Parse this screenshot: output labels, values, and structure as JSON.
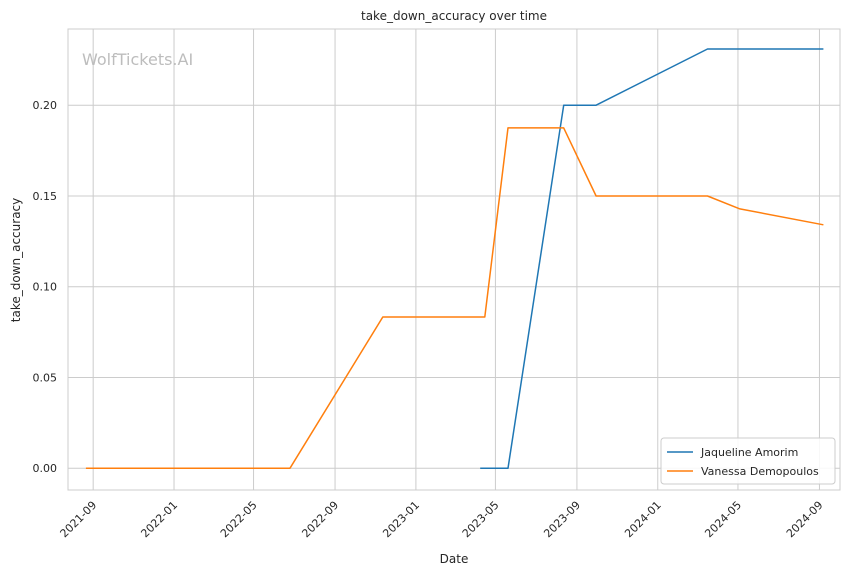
{
  "chart_data": {
    "type": "line",
    "title": "take_down_accuracy over time",
    "xlabel": "Date",
    "ylabel": "take_down_accuracy",
    "watermark": "WolfTickets.AI",
    "x_type": "date",
    "xlim": [
      "2021-07-25",
      "2024-10-02"
    ],
    "ylim": [
      -0.012,
      0.242
    ],
    "x_ticks": [
      "2021-09-01",
      "2022-01-01",
      "2022-05-01",
      "2022-09-01",
      "2023-01-01",
      "2023-05-01",
      "2023-09-01",
      "2024-01-01",
      "2024-05-01",
      "2024-09-01"
    ],
    "x_tick_labels": [
      "2021-09",
      "2022-01",
      "2022-05",
      "2022-09",
      "2023-01",
      "2023-05",
      "2023-09",
      "2024-01",
      "2024-05",
      "2024-09"
    ],
    "y_ticks": [
      0.0,
      0.05,
      0.1,
      0.15,
      0.2
    ],
    "y_tick_labels": [
      "0.00",
      "0.05",
      "0.10",
      "0.15",
      "0.20"
    ],
    "grid": true,
    "legend_position": "bottom-right",
    "series": [
      {
        "name": "Jaqueline Amorim",
        "color": "#1f77b4",
        "points": [
          {
            "x": "2023-04-08",
            "y": 0.0
          },
          {
            "x": "2023-05-20",
            "y": 0.0
          },
          {
            "x": "2023-08-12",
            "y": 0.2
          },
          {
            "x": "2023-09-30",
            "y": 0.2
          },
          {
            "x": "2024-03-16",
            "y": 0.231
          },
          {
            "x": "2024-09-07",
            "y": 0.231
          }
        ]
      },
      {
        "name": "Vanessa Demopoulos",
        "color": "#ff7f0e",
        "points": [
          {
            "x": "2021-08-21",
            "y": 0.0
          },
          {
            "x": "2022-06-25",
            "y": 0.0
          },
          {
            "x": "2022-11-12",
            "y": 0.0833
          },
          {
            "x": "2023-04-15",
            "y": 0.0833
          },
          {
            "x": "2023-05-20",
            "y": 0.1875
          },
          {
            "x": "2023-08-12",
            "y": 0.1875
          },
          {
            "x": "2023-09-30",
            "y": 0.15
          },
          {
            "x": "2024-03-16",
            "y": 0.15
          },
          {
            "x": "2024-05-04",
            "y": 0.1429
          },
          {
            "x": "2024-09-07",
            "y": 0.1341
          }
        ]
      }
    ]
  }
}
